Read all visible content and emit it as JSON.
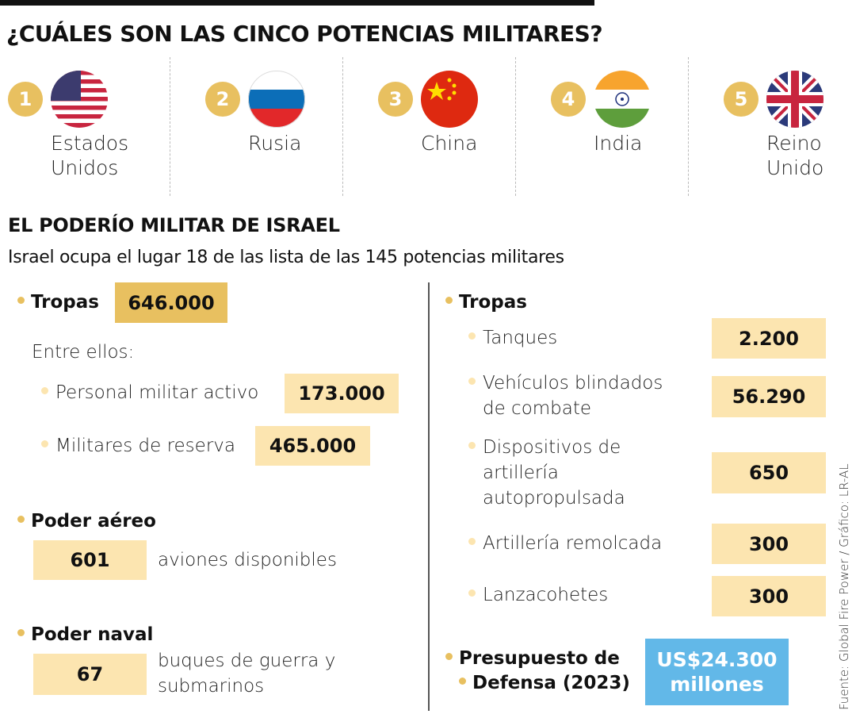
{
  "title": "¿CUÁLES SON LAS CINCO POTENCIAS MILITARES?",
  "countries": [
    {
      "rank": "1",
      "name_lines": [
        "Estados",
        "Unidos"
      ],
      "flag": "usa-flag-icon"
    },
    {
      "rank": "2",
      "name_lines": [
        "Rusia"
      ],
      "flag": "russia-flag-icon"
    },
    {
      "rank": "3",
      "name_lines": [
        "China"
      ],
      "flag": "china-flag-icon"
    },
    {
      "rank": "4",
      "name_lines": [
        "India"
      ],
      "flag": "india-flag-icon"
    },
    {
      "rank": "5",
      "name_lines": [
        "Reino",
        "Unido"
      ],
      "flag": "uk-flag-icon"
    }
  ],
  "israel": {
    "heading": "EL PODERÍO MILITAR DE ISRAEL",
    "subtitle": "Israel ocupa el lugar 18 de las lista de las 145 potencias militares",
    "left": {
      "troops_label": "Tropas",
      "troops_value": "646.000",
      "among": "Entre ellos:",
      "active_label": "Personal militar activo",
      "active_value": "173.000",
      "reserve_label": "Militares de reserva",
      "reserve_value": "465.000",
      "air_label": "Poder aéreo",
      "air_value": "601",
      "air_desc": "aviones disponibles",
      "naval_label": "Poder naval",
      "naval_value": "67",
      "naval_desc_lines": [
        "buques de guerra y",
        "submarinos"
      ]
    },
    "right": {
      "troops_label": "Tropas",
      "items": [
        {
          "label_lines": [
            "Tanques"
          ],
          "value": "2.200"
        },
        {
          "label_lines": [
            "Vehículos blindados",
            "de combate"
          ],
          "value": "56.290"
        },
        {
          "label_lines": [
            "Dispositivos de",
            "artillería",
            "autopropulsada"
          ],
          "value": "650"
        },
        {
          "label_lines": [
            "Artillería remolcada"
          ],
          "value": "300"
        },
        {
          "label_lines": [
            "Lanzacohetes"
          ],
          "value": "300"
        }
      ],
      "budget_label_lines": [
        "Presupuesto de",
        "Defensa (2023)"
      ],
      "budget_value_lines": [
        "US$24.300",
        "millones"
      ]
    }
  },
  "source": "Fuente: Global Fire Power / Gráfico: LR-AL",
  "colors": {
    "gold": "#E8C060",
    "light": "#FCE5B0",
    "blue": "#62B8E8"
  }
}
